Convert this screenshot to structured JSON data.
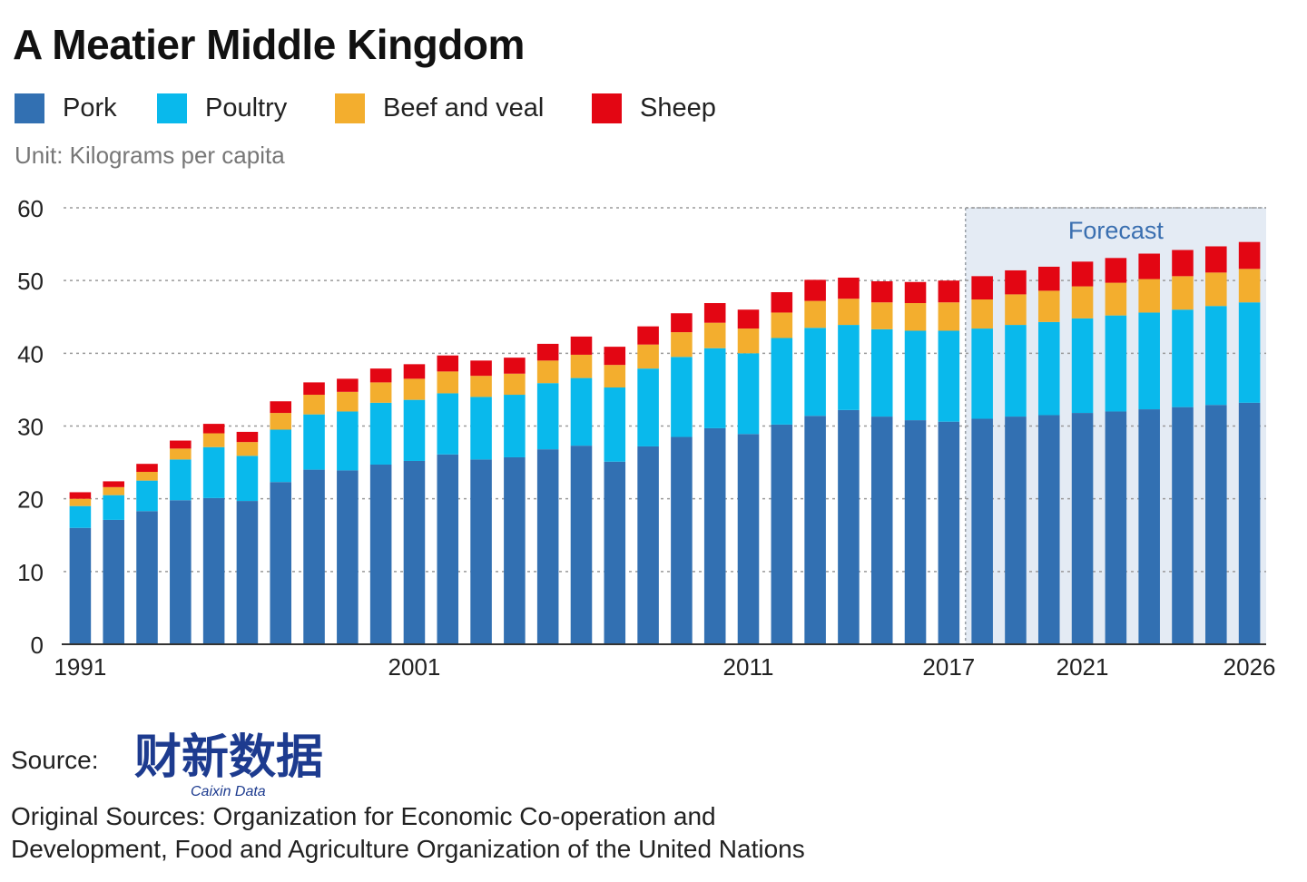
{
  "title": "A Meatier Middle Kingdom",
  "legend": [
    {
      "label": "Pork",
      "color": "#3270b2"
    },
    {
      "label": "Poultry",
      "color": "#09b9ec"
    },
    {
      "label": "Beef and veal",
      "color": "#f3ae2e"
    },
    {
      "label": "Sheep",
      "color": "#e30613"
    }
  ],
  "unit_label": "Unit: Kilograms per capita",
  "forecast_label": "Forecast",
  "source_label": "Source:",
  "logo": {
    "text": "财新数据",
    "subtext": "Caixin Data",
    "color": "#1d3b8f"
  },
  "original_sources": [
    "Original Sources: Organization for Economic Co-operation and",
    "Development, Food and Agriculture Organization of the United Nations"
  ],
  "chart_data": {
    "type": "bar",
    "stacked": true,
    "title": "A Meatier Middle Kingdom",
    "ylabel": "Unit: Kilograms per capita",
    "ylim": [
      0,
      60
    ],
    "yticks": [
      0,
      10,
      20,
      30,
      40,
      50,
      60
    ],
    "grid": true,
    "legend_position": "top-left",
    "x_tick_labels": [
      "1991",
      "2001",
      "2011",
      "2017",
      "2021",
      "2026"
    ],
    "forecast_start": 2018,
    "categories": [
      1991,
      1992,
      1993,
      1994,
      1995,
      1996,
      1997,
      1998,
      1999,
      2000,
      2001,
      2002,
      2003,
      2004,
      2005,
      2006,
      2007,
      2008,
      2009,
      2010,
      2011,
      2012,
      2013,
      2014,
      2015,
      2016,
      2017,
      2018,
      2019,
      2020,
      2021,
      2022,
      2023,
      2024,
      2025,
      2026
    ],
    "series": [
      {
        "name": "Pork",
        "color": "#3270b2",
        "values": [
          16.0,
          17.1,
          18.3,
          19.8,
          20.1,
          19.7,
          22.3,
          24.0,
          23.9,
          24.7,
          25.2,
          26.1,
          25.4,
          25.7,
          26.8,
          27.3,
          25.1,
          27.2,
          28.5,
          29.7,
          28.9,
          30.2,
          31.4,
          32.2,
          31.3,
          30.8,
          30.6,
          31.0,
          31.3,
          31.5,
          31.8,
          32.0,
          32.3,
          32.6,
          32.9,
          33.2
        ]
      },
      {
        "name": "Poultry",
        "color": "#09b9ec",
        "values": [
          3.0,
          3.4,
          4.2,
          5.6,
          7.0,
          6.2,
          7.2,
          7.6,
          8.1,
          8.5,
          8.4,
          8.4,
          8.6,
          8.6,
          9.1,
          9.3,
          10.2,
          10.7,
          11.0,
          11.0,
          11.1,
          11.9,
          12.1,
          11.7,
          12.0,
          12.3,
          12.5,
          12.4,
          12.6,
          12.8,
          13.0,
          13.2,
          13.3,
          13.4,
          13.6,
          13.8
        ]
      },
      {
        "name": "Beef and veal",
        "color": "#f3ae2e",
        "values": [
          1.0,
          1.1,
          1.2,
          1.5,
          1.9,
          1.9,
          2.3,
          2.7,
          2.7,
          2.8,
          2.9,
          3.0,
          2.9,
          2.9,
          3.1,
          3.2,
          3.1,
          3.3,
          3.4,
          3.5,
          3.4,
          3.5,
          3.7,
          3.6,
          3.7,
          3.8,
          3.9,
          4.0,
          4.2,
          4.3,
          4.4,
          4.5,
          4.6,
          4.6,
          4.6,
          4.6
        ]
      },
      {
        "name": "Sheep",
        "color": "#e30613",
        "values": [
          0.9,
          0.8,
          1.1,
          1.1,
          1.3,
          1.4,
          1.6,
          1.7,
          1.8,
          1.9,
          2.0,
          2.2,
          2.1,
          2.2,
          2.3,
          2.5,
          2.5,
          2.5,
          2.6,
          2.7,
          2.6,
          2.8,
          2.9,
          2.9,
          2.9,
          2.9,
          3.0,
          3.2,
          3.3,
          3.3,
          3.4,
          3.4,
          3.5,
          3.6,
          3.6,
          3.7
        ]
      }
    ]
  }
}
